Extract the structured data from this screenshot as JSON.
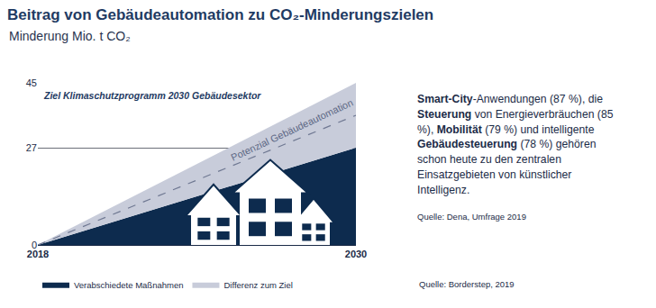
{
  "chart_data": {
    "type": "area",
    "title": "Beitrag von Gebäudeautomation zu CO₂-Minderungszielen",
    "subtitle": "Minderung Mio. t CO₂",
    "x": [
      2018,
      2030
    ],
    "xlim": [
      2018,
      2030
    ],
    "xticks": [
      2018,
      2030
    ],
    "ylim": [
      0,
      45
    ],
    "yticks": [
      0,
      27,
      45
    ],
    "stacked": true,
    "grid": true,
    "legend": "bottom left",
    "series": [
      {
        "name": "Verabschiedete Maßnahmen",
        "color": "#0d2b4e",
        "values": [
          0,
          27
        ]
      },
      {
        "name": "Differenz zum Ziel",
        "color": "#c8ccda",
        "values": [
          0,
          18
        ]
      },
      {
        "name": "Potenzial Gebäudeautomation",
        "type": "line",
        "line_style": "dashed",
        "color": "#6f7892",
        "values": [
          0,
          36
        ]
      }
    ],
    "annotations": [
      {
        "text": "Ziel Klimaschutzprogramm 2030 Gebäudesektor"
      }
    ],
    "source": "Quelle: Borderstep, 2019"
  },
  "info_box": {
    "text_parts": [
      {
        "text": "Smart-City",
        "bold": true
      },
      {
        "text": "-Anwendungen (87 %), die "
      },
      {
        "text": "Steuerung",
        "bold": true
      },
      {
        "text": " von Energieverbräuchen (85 %), "
      },
      {
        "text": "Mobilität",
        "bold": true
      },
      {
        "text": " (79 %) und intelligente "
      },
      {
        "text": "Gebäudesteuerung",
        "bold": true
      },
      {
        "text": " (78 %) gehören schon heute zu den zentralen Einsatzgebieten von künstlicher Intelligenz."
      }
    ],
    "source": "Quelle: Dena, Umfrage 2019"
  }
}
